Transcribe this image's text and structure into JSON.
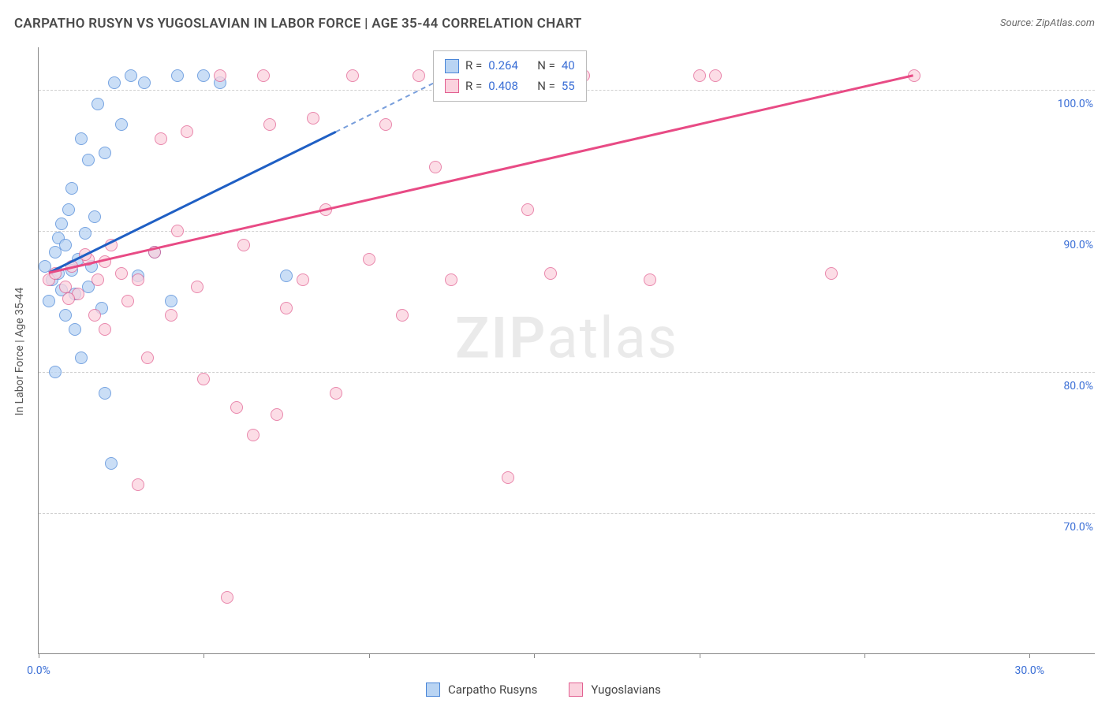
{
  "title": "CARPATHO RUSYN VS YUGOSLAVIAN IN LABOR FORCE | AGE 35-44 CORRELATION CHART",
  "source": "Source: ZipAtlas.com",
  "ylabel": "In Labor Force | Age 35-44",
  "chart": {
    "type": "scatter",
    "background_color": "#ffffff",
    "grid_color": "#d0d0d0",
    "axis_color": "#888888",
    "label_color": "#3b6fd6",
    "title_color": "#4a4a4a",
    "marker_radius": 8,
    "marker_opacity": 0.75,
    "xlim": [
      0,
      32
    ],
    "ylim": [
      60,
      103
    ],
    "yticks": [
      70,
      80,
      90,
      100
    ],
    "ytick_labels": [
      "70.0%",
      "80.0%",
      "90.0%",
      "100.0%"
    ],
    "xticks": [
      0,
      5,
      10,
      15,
      20,
      25,
      30
    ],
    "xtick_labels_shown": {
      "0": "0.0%",
      "30": "30.0%"
    },
    "series": [
      {
        "name": "Carpatho Rusyns",
        "fill": "#b9d4f3",
        "stroke": "#4a86d8",
        "points": [
          [
            0.2,
            87.5
          ],
          [
            0.3,
            85.0
          ],
          [
            0.4,
            86.5
          ],
          [
            0.5,
            88.5
          ],
          [
            0.6,
            89.5
          ],
          [
            0.6,
            87.0
          ],
          [
            0.7,
            90.5
          ],
          [
            0.7,
            85.8
          ],
          [
            0.8,
            84.0
          ],
          [
            0.8,
            89.0
          ],
          [
            0.9,
            91.5
          ],
          [
            1.0,
            87.2
          ],
          [
            1.0,
            93.0
          ],
          [
            1.1,
            85.5
          ],
          [
            1.2,
            88.0
          ],
          [
            1.3,
            96.5
          ],
          [
            1.4,
            89.8
          ],
          [
            1.5,
            86.0
          ],
          [
            1.5,
            95.0
          ],
          [
            1.6,
            87.5
          ],
          [
            1.7,
            91.0
          ],
          [
            1.8,
            99.0
          ],
          [
            1.9,
            84.5
          ],
          [
            2.0,
            78.5
          ],
          [
            2.0,
            95.5
          ],
          [
            2.2,
            73.5
          ],
          [
            2.3,
            100.5
          ],
          [
            2.5,
            97.5
          ],
          [
            2.8,
            101.0
          ],
          [
            3.0,
            86.8
          ],
          [
            3.2,
            100.5
          ],
          [
            3.5,
            88.5
          ],
          [
            4.0,
            85.0
          ],
          [
            4.2,
            101.0
          ],
          [
            5.0,
            101.0
          ],
          [
            5.5,
            100.5
          ],
          [
            1.1,
            83.0
          ],
          [
            1.3,
            81.0
          ],
          [
            0.5,
            80.0
          ],
          [
            7.5,
            86.8
          ]
        ],
        "trend": {
          "x0": 0.3,
          "y0": 87.0,
          "x1": 9.0,
          "y1": 97.0,
          "x2": 12.0,
          "y2": 100.5,
          "solid_color": "#1f5fc4",
          "dash_after_x": 9.0
        }
      },
      {
        "name": "Yugoslavians",
        "fill": "#fbd2de",
        "stroke": "#e26091",
        "points": [
          [
            0.3,
            86.5
          ],
          [
            0.5,
            87.0
          ],
          [
            0.8,
            86.0
          ],
          [
            1.0,
            87.5
          ],
          [
            1.2,
            85.5
          ],
          [
            1.5,
            88.0
          ],
          [
            1.7,
            84.0
          ],
          [
            1.8,
            86.5
          ],
          [
            2.0,
            83.0
          ],
          [
            2.2,
            89.0
          ],
          [
            2.5,
            87.0
          ],
          [
            2.7,
            85.0
          ],
          [
            3.0,
            86.5
          ],
          [
            3.3,
            81.0
          ],
          [
            3.5,
            88.5
          ],
          [
            3.7,
            96.5
          ],
          [
            4.0,
            84.0
          ],
          [
            4.2,
            90.0
          ],
          [
            4.5,
            97.0
          ],
          [
            4.8,
            86.0
          ],
          [
            5.0,
            79.5
          ],
          [
            5.5,
            101.0
          ],
          [
            5.7,
            64.0
          ],
          [
            6.0,
            77.5
          ],
          [
            6.2,
            89.0
          ],
          [
            6.5,
            75.5
          ],
          [
            6.8,
            101.0
          ],
          [
            7.0,
            97.5
          ],
          [
            7.2,
            77.0
          ],
          [
            7.5,
            84.5
          ],
          [
            8.0,
            86.5
          ],
          [
            8.3,
            98.0
          ],
          [
            8.7,
            91.5
          ],
          [
            9.0,
            78.5
          ],
          [
            9.5,
            101.0
          ],
          [
            10.0,
            88.0
          ],
          [
            10.5,
            97.5
          ],
          [
            11.0,
            84.0
          ],
          [
            11.5,
            101.0
          ],
          [
            12.0,
            94.5
          ],
          [
            12.5,
            86.5
          ],
          [
            13.5,
            101.0
          ],
          [
            14.2,
            72.5
          ],
          [
            14.8,
            91.5
          ],
          [
            15.5,
            87.0
          ],
          [
            16.5,
            101.0
          ],
          [
            20.0,
            101.0
          ],
          [
            20.5,
            101.0
          ],
          [
            24.0,
            87.0
          ],
          [
            26.5,
            101.0
          ],
          [
            18.5,
            86.5
          ],
          [
            3.0,
            72.0
          ],
          [
            2.0,
            87.8
          ],
          [
            1.4,
            88.3
          ],
          [
            0.9,
            85.2
          ]
        ],
        "trend": {
          "x0": 0.3,
          "y0": 87.0,
          "x1": 26.5,
          "y1": 101.0,
          "solid_color": "#e84b85"
        }
      }
    ]
  },
  "legend_top": {
    "rows": [
      {
        "swatch_fill": "#b9d4f3",
        "swatch_stroke": "#4a86d8",
        "r_label": "R =",
        "r_value": "0.264",
        "n_label": "N =",
        "n_value": "40"
      },
      {
        "swatch_fill": "#fbd2de",
        "swatch_stroke": "#e26091",
        "r_label": "R =",
        "r_value": "0.408",
        "n_label": "N =",
        "n_value": "55"
      }
    ],
    "value_color": "#3b6fd6",
    "label_color": "#444444"
  },
  "legend_bottom": {
    "items": [
      {
        "swatch_fill": "#b9d4f3",
        "swatch_stroke": "#4a86d8",
        "label": "Carpatho Rusyns"
      },
      {
        "swatch_fill": "#fbd2de",
        "swatch_stroke": "#e26091",
        "label": "Yugoslavians"
      }
    ]
  },
  "watermark": {
    "zip": "ZIP",
    "atlas": "atlas"
  }
}
